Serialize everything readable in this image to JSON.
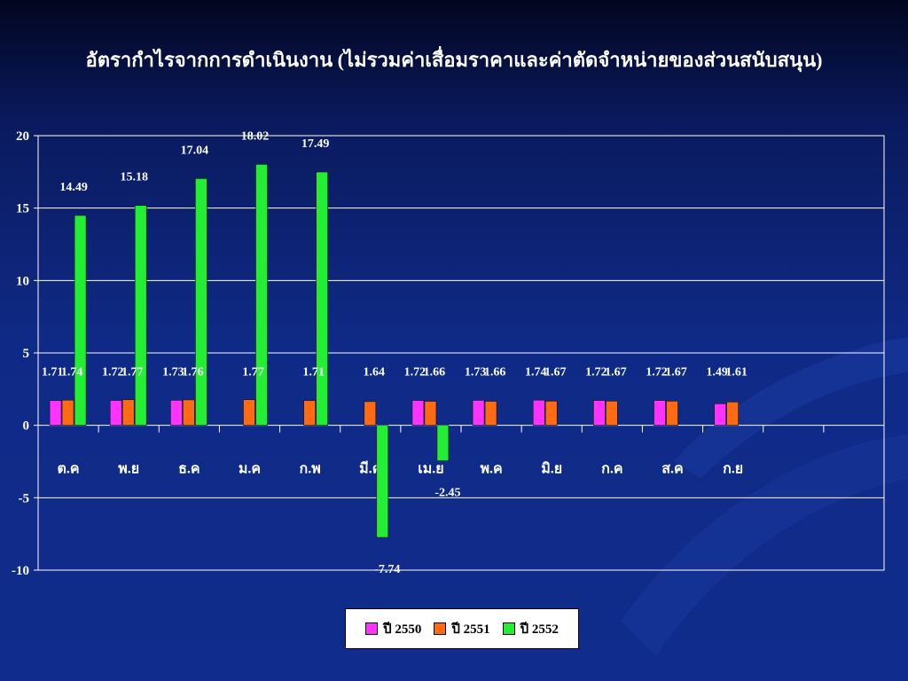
{
  "slide": {
    "title": "อัตรากำไรจากการดำเนินงาน (ไม่รวมค่าเสื่อมราคาและค่าตัดจำหน่ายของส่วนสนับสนุน)"
  },
  "colors": {
    "series_2550": "#ff33ff",
    "series_2551": "#ff6a13",
    "series_2552": "#22ee33",
    "gridline": "#ffffff",
    "text": "#ffffff"
  },
  "chart_data": {
    "type": "bar",
    "title": "อัตรากำไรจากการดำเนินงาน (ไม่รวมค่าเสื่อมราคาและค่าตัดจำหน่ายของส่วนสนับสนุน)",
    "categories": [
      "ต.ค",
      "พ.ย",
      "ธ.ค",
      "ม.ค",
      "ก.พ",
      "มี.ค",
      "เม.ย",
      "พ.ค",
      "มิ.ย",
      "ก.ค",
      "ส.ค",
      "ก.ย",
      "",
      ""
    ],
    "series": [
      {
        "name": "ปี 2550",
        "values": [
          1.71,
          1.72,
          1.73,
          null,
          null,
          null,
          1.72,
          1.73,
          1.74,
          1.72,
          1.72,
          1.49,
          null,
          null
        ]
      },
      {
        "name": "ปี 2551",
        "values": [
          1.74,
          1.77,
          1.76,
          1.77,
          1.71,
          1.64,
          1.66,
          1.66,
          1.67,
          1.67,
          1.67,
          1.61,
          null,
          null
        ]
      },
      {
        "name": "ปี 2552",
        "values": [
          14.49,
          15.18,
          17.04,
          18.02,
          17.49,
          -7.74,
          -2.45,
          null,
          null,
          null,
          null,
          null,
          null,
          null
        ]
      }
    ],
    "data_labels": [
      [
        "1.71",
        "1.72",
        "1.73",
        "",
        "",
        "",
        "1.72",
        "1.73",
        "1.74",
        "1.72",
        "1.72",
        "1.49",
        "",
        ""
      ],
      [
        "1.74",
        "1.77",
        "1.76",
        "1.77",
        "1.71",
        "1.64",
        "1.66",
        "1.66",
        "1.67",
        "1.67",
        "1.67",
        "1.61",
        "",
        ""
      ],
      [
        "14.49",
        "15.18",
        "17.04",
        "18.02",
        "17.49",
        "-7.74",
        "-2.45",
        "",
        "",
        "",
        "",
        "",
        "",
        ""
      ]
    ],
    "ylim": [
      -10,
      20
    ],
    "yticks": [
      "-10",
      "-5",
      "0",
      "5",
      "10",
      "15",
      "20"
    ],
    "xlabel": "",
    "ylabel": "",
    "grid": true,
    "legend": "bottom-center"
  }
}
